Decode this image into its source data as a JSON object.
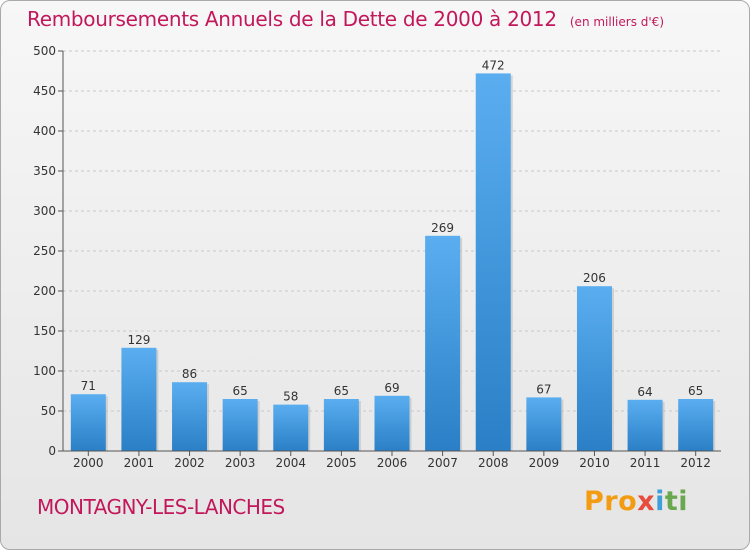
{
  "header": {
    "title": "Remboursements Annuels de la Dette de 2000 à 2012",
    "unit": "(en milliers d'€)"
  },
  "footer": {
    "town": "MONTAGNY-LES-LANCHES",
    "logo": [
      "Pro",
      "x",
      "i",
      "ti"
    ]
  },
  "colors": {
    "title": "#c2185b",
    "bar_top": "#5aaef0",
    "bar_bottom": "#2a7fc6"
  },
  "chart_data": {
    "type": "bar",
    "title": "Remboursements Annuels de la Dette de 2000 à 2012",
    "subtitle": "(en milliers d'€)",
    "xlabel": "",
    "ylabel": "",
    "categories": [
      "2000",
      "2001",
      "2002",
      "2003",
      "2004",
      "2005",
      "2006",
      "2007",
      "2008",
      "2009",
      "2010",
      "2011",
      "2012"
    ],
    "values": [
      71,
      129,
      86,
      65,
      58,
      65,
      69,
      269,
      472,
      67,
      206,
      64,
      65
    ],
    "ylim": [
      0,
      500
    ],
    "yticks": [
      0,
      50,
      100,
      150,
      200,
      250,
      300,
      350,
      400,
      450,
      500
    ],
    "grid": true,
    "legend": "none"
  }
}
